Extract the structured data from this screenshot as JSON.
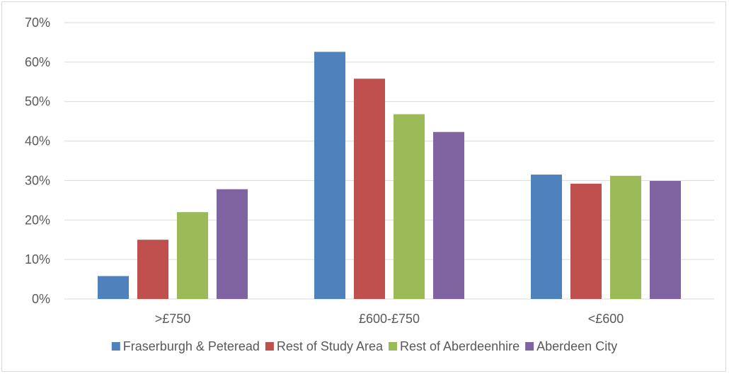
{
  "chart_data": {
    "type": "bar",
    "title": "",
    "xlabel": "",
    "ylabel": "",
    "categories": [
      ">£750",
      "£600-£750",
      "<£600"
    ],
    "ylim": [
      0,
      70
    ],
    "y_ticks": [
      0,
      10,
      20,
      30,
      40,
      50,
      60,
      70
    ],
    "y_tick_labels": [
      "0%",
      "10%",
      "20%",
      "30%",
      "40%",
      "50%",
      "60%",
      "70%"
    ],
    "grid": true,
    "legend_position": "bottom",
    "series": [
      {
        "name": "Fraserburgh & Peteread",
        "color": "#4f81bd",
        "values": [
          5.8,
          62.6,
          31.5
        ]
      },
      {
        "name": "Rest of Study Area",
        "color": "#c0504d",
        "values": [
          15.0,
          55.8,
          29.2
        ]
      },
      {
        "name": "Rest of Aberdeenhire",
        "color": "#9bbb59",
        "values": [
          22.0,
          46.8,
          31.2
        ]
      },
      {
        "name": "Aberdeen City",
        "color": "#8064a2",
        "values": [
          27.8,
          42.3,
          29.9
        ]
      }
    ]
  }
}
